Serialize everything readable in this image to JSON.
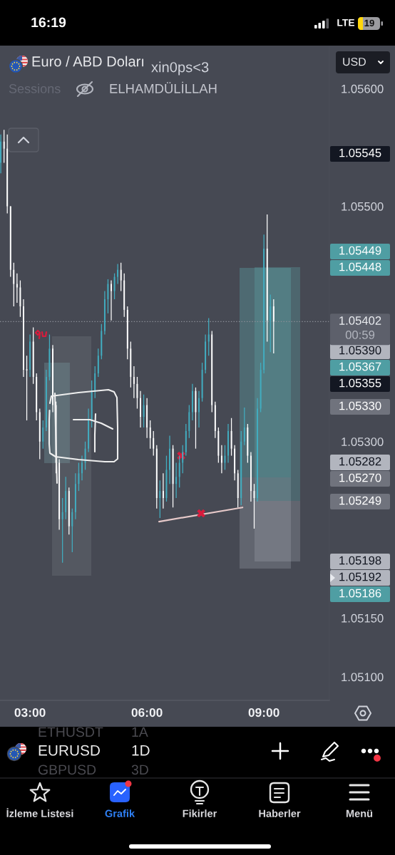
{
  "chart_data": {
    "type": "candlestick",
    "title": "Euro / ABD Doları",
    "x": [
      2.25,
      2.3333,
      2.4167,
      2.5,
      2.5833,
      2.6667,
      2.75,
      2.8333,
      2.9167,
      3,
      3.0833,
      3.1667,
      3.25,
      3.3333,
      3.4167,
      3.5,
      3.5833,
      3.6667,
      3.75,
      3.8333,
      3.9167,
      4,
      4.0833,
      4.1667,
      4.25,
      4.3333,
      4.4167,
      4.5,
      4.5833,
      4.6667,
      4.75,
      4.8333,
      4.9167,
      5,
      5.0833,
      5.1667,
      5.25,
      5.3333,
      5.4167,
      5.5,
      5.5833,
      5.6667,
      5.75,
      5.8333,
      5.9167,
      6,
      6.0833,
      6.1667,
      6.25,
      6.3333,
      6.4167,
      6.5,
      6.5833,
      6.6667,
      6.75,
      6.8333,
      6.9167,
      7,
      7.0833,
      7.1667,
      7.25,
      7.3333,
      7.4167,
      7.5,
      7.5833,
      7.6667,
      7.75,
      7.8333,
      7.9167,
      8,
      8.0833,
      8.1667,
      8.25,
      8.3333,
      8.4167,
      8.5,
      8.5833,
      8.6667,
      8.75,
      8.8333,
      8.9167,
      9,
      9.0833,
      9.1667,
      9.25
    ],
    "ohlc": [
      [
        1.05537,
        1.05561,
        1.05528,
        1.05555
      ],
      [
        1.05555,
        1.05565,
        1.05537,
        1.05549
      ],
      [
        1.05549,
        1.05561,
        1.05494,
        1.055
      ],
      [
        1.055,
        1.055,
        1.0544,
        1.05446
      ],
      [
        1.05446,
        1.05452,
        1.05415,
        1.05434
      ],
      [
        1.05434,
        1.05443,
        1.05418,
        1.05431
      ],
      [
        1.05431,
        1.05437,
        1.05406,
        1.05415
      ],
      [
        1.05415,
        1.05421,
        1.05355,
        1.05361
      ],
      [
        1.05361,
        1.05373,
        1.05318,
        1.05361
      ],
      [
        1.05361,
        1.05391,
        1.05355,
        1.05385
      ],
      [
        1.05385,
        1.05397,
        1.05349,
        1.05355
      ],
      [
        1.05355,
        1.05358,
        1.05318,
        1.05325
      ],
      [
        1.05325,
        1.05328,
        1.05285,
        1.053
      ],
      [
        1.053,
        1.05318,
        1.05294,
        1.05312
      ],
      [
        1.05312,
        1.05361,
        1.05309,
        1.05355
      ],
      [
        1.05355,
        1.05391,
        1.05352,
        1.05379
      ],
      [
        1.05379,
        1.05382,
        1.05325,
        1.05331
      ],
      [
        1.05331,
        1.05334,
        1.05273,
        1.05282
      ],
      [
        1.05282,
        1.05285,
        1.05225,
        1.05234
      ],
      [
        1.05234,
        1.05252,
        1.05197,
        1.0524
      ],
      [
        1.0524,
        1.0527,
        1.05234,
        1.05258
      ],
      [
        1.05258,
        1.05261,
        1.05221,
        1.05228
      ],
      [
        1.05228,
        1.05243,
        1.05206,
        1.0524
      ],
      [
        1.0524,
        1.05273,
        1.05234,
        1.05264
      ],
      [
        1.05264,
        1.05282,
        1.05258,
        1.05273
      ],
      [
        1.05273,
        1.05288,
        1.05267,
        1.05282
      ],
      [
        1.05282,
        1.053,
        1.05276,
        1.05294
      ],
      [
        1.05294,
        1.05328,
        1.05291,
        1.05318
      ],
      [
        1.05318,
        1.05352,
        1.05312,
        1.05343
      ],
      [
        1.05343,
        1.05364,
        1.05337,
        1.05358
      ],
      [
        1.05358,
        1.05379,
        1.05355,
        1.05373
      ],
      [
        1.05373,
        1.054,
        1.0537,
        1.05394
      ],
      [
        1.05394,
        1.05428,
        1.05391,
        1.05421
      ],
      [
        1.05421,
        1.05438,
        1.05409,
        1.05434
      ],
      [
        1.05434,
        1.05437,
        1.05403,
        1.05428
      ],
      [
        1.05428,
        1.05443,
        1.05421,
        1.0544
      ],
      [
        1.0544,
        1.05451,
        1.05434,
        1.05446
      ],
      [
        1.05446,
        1.05452,
        1.05428,
        1.05437
      ],
      [
        1.05437,
        1.05443,
        1.05406,
        1.05412
      ],
      [
        1.05412,
        1.05415,
        1.0537,
        1.05379
      ],
      [
        1.05379,
        1.05385,
        1.05346,
        1.05355
      ],
      [
        1.05355,
        1.05364,
        1.05337,
        1.05349
      ],
      [
        1.05349,
        1.05355,
        1.05328,
        1.05337
      ],
      [
        1.05337,
        1.05343,
        1.05312,
        1.05321
      ],
      [
        1.05321,
        1.0534,
        1.05312,
        1.05331
      ],
      [
        1.05331,
        1.05337,
        1.05303,
        1.05312
      ],
      [
        1.05312,
        1.05318,
        1.05294,
        1.05303
      ],
      [
        1.05303,
        1.05309,
        1.05288,
        1.05294
      ],
      [
        1.05294,
        1.05297,
        1.05243,
        1.05252
      ],
      [
        1.05252,
        1.05267,
        1.05235,
        1.05258
      ],
      [
        1.05258,
        1.05273,
        1.05243,
        1.05252
      ],
      [
        1.05252,
        1.05288,
        1.05249,
        1.05276
      ],
      [
        1.05276,
        1.05305,
        1.05264,
        1.05294
      ],
      [
        1.05294,
        1.05297,
        1.05244,
        1.05264
      ],
      [
        1.05264,
        1.05282,
        1.05252,
        1.0527
      ],
      [
        1.0527,
        1.05288,
        1.05261,
        1.05282
      ],
      [
        1.05282,
        1.05297,
        1.05273,
        1.05291
      ],
      [
        1.05291,
        1.05315,
        1.05288,
        1.05309
      ],
      [
        1.05309,
        1.05331,
        1.05303,
        1.05325
      ],
      [
        1.05325,
        1.05349,
        1.05318,
        1.05343
      ],
      [
        1.05343,
        1.05346,
        1.05294,
        1.05325
      ],
      [
        1.05325,
        1.05343,
        1.05312,
        1.05337
      ],
      [
        1.05337,
        1.05367,
        1.05334,
        1.05361
      ],
      [
        1.05361,
        1.05391,
        1.05358,
        1.05385
      ],
      [
        1.05385,
        1.05405,
        1.05373,
        1.05391
      ],
      [
        1.05391,
        1.05394,
        1.05325,
        1.05331
      ],
      [
        1.05331,
        1.05334,
        1.05303,
        1.05309
      ],
      [
        1.05309,
        1.05312,
        1.05282,
        1.05288
      ],
      [
        1.05288,
        1.05297,
        1.05273,
        1.05282
      ],
      [
        1.05282,
        1.05297,
        1.05276,
        1.05288
      ],
      [
        1.05288,
        1.05315,
        1.05282,
        1.05309
      ],
      [
        1.05309,
        1.0532,
        1.05288,
        1.05294
      ],
      [
        1.05294,
        1.05297,
        1.05267,
        1.05273
      ],
      [
        1.05273,
        1.05276,
        1.05244,
        1.05252
      ],
      [
        1.05252,
        1.05309,
        1.05246,
        1.053
      ],
      [
        1.053,
        1.05329,
        1.05297,
        1.05312
      ],
      [
        1.05312,
        1.05315,
        1.05282,
        1.05288
      ],
      [
        1.05288,
        1.05291,
        1.05249,
        1.05258
      ],
      [
        1.05258,
        1.05264,
        1.05226,
        1.05252
      ],
      [
        1.05252,
        1.05337,
        1.05249,
        1.05328
      ],
      [
        1.05328,
        1.05367,
        1.05325,
        1.05361
      ],
      [
        1.05361,
        1.05476,
        1.05358,
        1.05464
      ],
      [
        1.05464,
        1.05493,
        1.05385,
        1.05403
      ],
      [
        1.05403,
        1.05425,
        1.05376,
        1.05415
      ],
      [
        1.05415,
        1.05421,
        1.05375,
        1.05402
      ]
    ],
    "colors": [
      "#42adc0",
      "#ffffff",
      "#ffffff",
      "#ffffff",
      "#ffffff",
      "#ffffff",
      "#ffffff",
      "#ffffff",
      "#ffffff",
      "#42adc0",
      "#ffffff",
      "#ffffff",
      "#ffffff",
      "#42adc0",
      "#42adc0",
      "#42adc0",
      "#ffffff",
      "#ffffff",
      "#ffffff",
      "#42adc0",
      "#42adc0",
      "#ffffff",
      "#42adc0",
      "#42adc0",
      "#42adc0",
      "#42adc0",
      "#42adc0",
      "#42adc0",
      "#42adc0",
      "#42adc0",
      "#42adc0",
      "#42adc0",
      "#42adc0",
      "#42adc0",
      "#ffffff",
      "#42adc0",
      "#42adc0",
      "#ffffff",
      "#ffffff",
      "#ffffff",
      "#ffffff",
      "#ffffff",
      "#ffffff",
      "#ffffff",
      "#42adc0",
      "#ffffff",
      "#ffffff",
      "#ffffff",
      "#ffffff",
      "#42adc0",
      "#ffffff",
      "#42adc0",
      "#42adc0",
      "#ffffff",
      "#42adc0",
      "#42adc0",
      "#42adc0",
      "#42adc0",
      "#42adc0",
      "#42adc0",
      "#ffffff",
      "#42adc0",
      "#42adc0",
      "#42adc0",
      "#42adc0",
      "#ffffff",
      "#ffffff",
      "#ffffff",
      "#ffffff",
      "#42adc0",
      "#42adc0",
      "#ffffff",
      "#ffffff",
      "#ffffff",
      "#42adc0",
      "#42adc0",
      "#ffffff",
      "#ffffff",
      "#ffffff",
      "#42adc0",
      "#42adc0",
      "#42adc0",
      "#ffffff",
      "#42adc0",
      "#ffffff"
    ],
    "series": [
      {
        "type": "line",
        "x": [
          6.311,
          8.451
        ],
        "values": [
          1.05232,
          1.05244
        ],
        "color": "#e6c9c9"
      },
      {
        "type": "scatter",
        "x": [
          6.878,
          7.39
        ],
        "values": [
          1.05288,
          1.05239
        ],
        "color": "#d81b3c",
        "marker": "cross"
      }
    ],
    "xlim": [
      2.23,
      10.68
    ],
    "ylim": [
      1.0508,
      1.05636
    ],
    "xticks": [
      {
        "value": 3,
        "label": "03:00"
      },
      {
        "value": 6,
        "label": "06:00"
      },
      {
        "value": 9,
        "label": "09:00"
      }
    ],
    "yticks": [
      {
        "value": 1.051,
        "label": "1.05100"
      },
      {
        "value": 1.0515,
        "label": "1.05150"
      },
      {
        "value": 1.053,
        "label": "1.05300"
      },
      {
        "value": 1.055,
        "label": "1.05500"
      },
      {
        "value": 1.056,
        "label": "1.05600"
      }
    ],
    "ref_lines": [
      {
        "axis": "y",
        "value": 1.05402,
        "label": "1.05402",
        "color": "#8d9099",
        "line_style": "dotted"
      }
    ],
    "annotations": [
      "16:19",
      "LTE",
      "19",
      "xin0ps<3",
      "Sessions",
      "ELHAMDÜLİLLAH",
      "USD",
      "00:59",
      "1.05545",
      "1.05449",
      "1.05448",
      "1.05390",
      "1.05367",
      "1.05355",
      "1.05330",
      "1.05282",
      "1.05270",
      "1.05249",
      "1.05198",
      "1.05192",
      "1.05186",
      "ETHUSDT",
      "1A",
      "EURUSD",
      "1D",
      "GBPUSD",
      "3D",
      "İzleme Listesi",
      "Grafik",
      "Fikirler",
      "Haberler",
      "Menü"
    ]
  }
}
